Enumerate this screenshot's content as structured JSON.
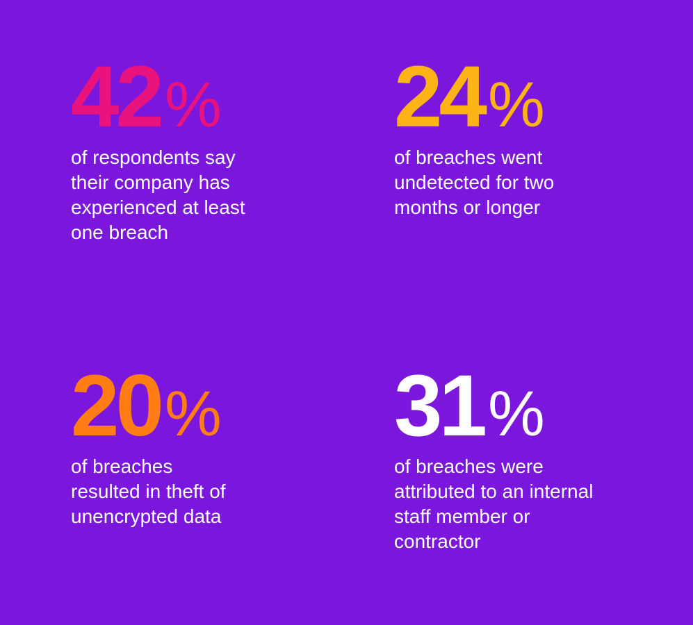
{
  "stats": [
    {
      "value": 42,
      "unit": "%",
      "color": "#e8137c",
      "lines": [
        "of respondents say",
        "their company has",
        "experienced at least",
        "one breach"
      ]
    },
    {
      "value": 24,
      "unit": "%",
      "color": "#fbb315",
      "lines": [
        "of breaches went",
        "undetected for two",
        "months or longer"
      ]
    },
    {
      "value": 20,
      "unit": "%",
      "color": "#ff7d12",
      "lines": [
        "of breaches",
        "resulted in theft of",
        "unencrypted data"
      ]
    },
    {
      "value": 31,
      "unit": "%",
      "color": "#ffffff",
      "lines": [
        "of breaches were",
        "attributed to an internal",
        "staff member or",
        "contractor"
      ]
    }
  ]
}
